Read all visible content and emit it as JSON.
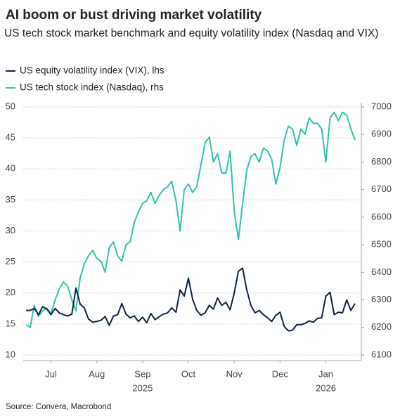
{
  "chart_data": {
    "type": "line",
    "title": "AI boom or bust driving market volatility",
    "subtitle": "US tech stock market benchmark and equity volatility index (Nasdaq and VIX)",
    "source": "Source: Convera, Macrobond",
    "categories": [
      null,
      null,
      null,
      null,
      null,
      null,
      "Jul",
      null,
      null,
      null,
      null,
      null,
      null,
      null,
      null,
      null,
      null,
      "Aug",
      null,
      null,
      null,
      null,
      null,
      null,
      null,
      null,
      null,
      null,
      "Sep",
      null,
      null,
      null,
      null,
      null,
      null,
      null,
      null,
      null,
      null,
      "Oct",
      null,
      null,
      null,
      null,
      null,
      null,
      null,
      null,
      null,
      null,
      "Nov",
      null,
      null,
      null,
      null,
      null,
      null,
      null,
      null,
      null,
      null,
      "Dec",
      null,
      null,
      null,
      null,
      null,
      null,
      null,
      null,
      null,
      null,
      "Jan",
      null,
      null,
      null,
      null,
      null,
      null,
      null
    ],
    "year_labels": [
      null,
      null,
      null,
      null,
      null,
      null,
      null,
      null,
      null,
      null,
      null,
      null,
      null,
      null,
      null,
      null,
      null,
      null,
      null,
      null,
      null,
      null,
      null,
      null,
      null,
      null,
      null,
      null,
      "2025",
      null,
      null,
      null,
      null,
      null,
      null,
      null,
      null,
      null,
      null,
      null,
      null,
      null,
      null,
      null,
      null,
      null,
      null,
      null,
      null,
      null,
      null,
      null,
      null,
      null,
      null,
      null,
      null,
      null,
      null,
      null,
      null,
      null,
      null,
      null,
      null,
      null,
      null,
      null,
      null,
      null,
      null,
      null,
      "2026",
      null,
      null,
      null,
      null,
      null,
      null,
      null
    ],
    "series": [
      {
        "name": "US equity volatility index (VIX), lhs",
        "color": "#0b2341",
        "axis": "y",
        "values": [
          17.2,
          17.2,
          17.5,
          16.5,
          17.8,
          17.4,
          16.5,
          17.5,
          16.8,
          16.5,
          16.3,
          16.6,
          20.8,
          18.2,
          17.6,
          15.8,
          15.3,
          15.4,
          15.6,
          16.2,
          14.8,
          16.3,
          16.5,
          18.3,
          16.6,
          16.0,
          16.3,
          15.4,
          16.1,
          15.2,
          16.7,
          15.7,
          16.2,
          16.6,
          16.8,
          17.6,
          16.9,
          20.5,
          19.5,
          22.4,
          19.0,
          17.2,
          16.4,
          16.8,
          18.0,
          17.4,
          19.2,
          18.0,
          18.5,
          17.3,
          20.0,
          23.5,
          24.0,
          20.5,
          18.0,
          16.8,
          17.2,
          16.5,
          16.0,
          15.4,
          16.4,
          16.9,
          14.6,
          13.9,
          14.0,
          14.9,
          14.9,
          15.1,
          15.5,
          15.3,
          15.9,
          16.0,
          19.5,
          20.1,
          16.5,
          16.9,
          16.8,
          18.9,
          17.2,
          18.3
        ]
      },
      {
        "name": "US tech stock index (Nasdaq), rhs",
        "color": "#2ec4b0",
        "axis": "y2",
        "values": [
          6210,
          6200,
          6280,
          6240,
          6260,
          6270,
          6250,
          6300,
          6340,
          6365,
          6350,
          6300,
          6260,
          6380,
          6430,
          6460,
          6480,
          6450,
          6440,
          6400,
          6490,
          6510,
          6460,
          6440,
          6500,
          6510,
          6580,
          6620,
          6650,
          6660,
          6690,
          6650,
          6680,
          6700,
          6710,
          6730,
          6660,
          6550,
          6700,
          6720,
          6690,
          6710,
          6790,
          6870,
          6890,
          6800,
          6830,
          6760,
          6760,
          6840,
          6620,
          6520,
          6650,
          6770,
          6820,
          6830,
          6800,
          6850,
          6840,
          6810,
          6720,
          6780,
          6880,
          6930,
          6920,
          6860,
          6920,
          6900,
          6960,
          6940,
          6940,
          6920,
          6800,
          6960,
          6980,
          6950,
          6980,
          6970,
          6920,
          6880
        ]
      }
    ],
    "ylim": [
      10,
      50
    ],
    "yticks": [
      10,
      15,
      20,
      25,
      30,
      35,
      40,
      45,
      50
    ],
    "y2lim": [
      6100,
      7000
    ],
    "y2ticks": [
      6100,
      6200,
      6300,
      6400,
      6500,
      6600,
      6700,
      6800,
      6900,
      7000
    ],
    "grid": true
  }
}
